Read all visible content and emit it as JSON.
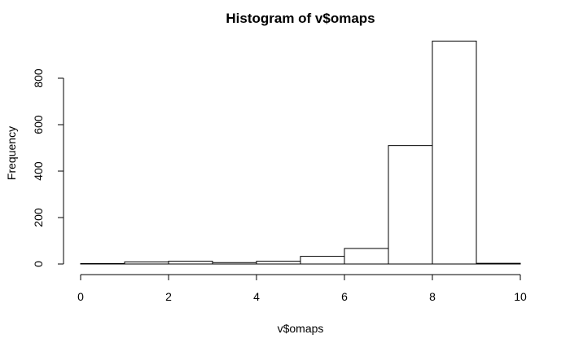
{
  "chart_data": {
    "type": "bar",
    "title": "Histogram of v$omaps",
    "xlabel": "v$omaps",
    "ylabel": "Frequency",
    "xlim": [
      0,
      10
    ],
    "ylim": [
      0,
      960
    ],
    "x_ticks": [
      0,
      2,
      4,
      6,
      8,
      10
    ],
    "y_ticks": [
      0,
      200,
      400,
      600,
      800
    ],
    "bin_edges": [
      0,
      1,
      2,
      3,
      4,
      5,
      6,
      7,
      8,
      9,
      10
    ],
    "values": [
      2,
      9,
      12,
      6,
      12,
      33,
      67,
      510,
      960,
      3
    ],
    "grid": false,
    "bar_fill": "#ffffff",
    "bar_stroke": "#000000"
  }
}
